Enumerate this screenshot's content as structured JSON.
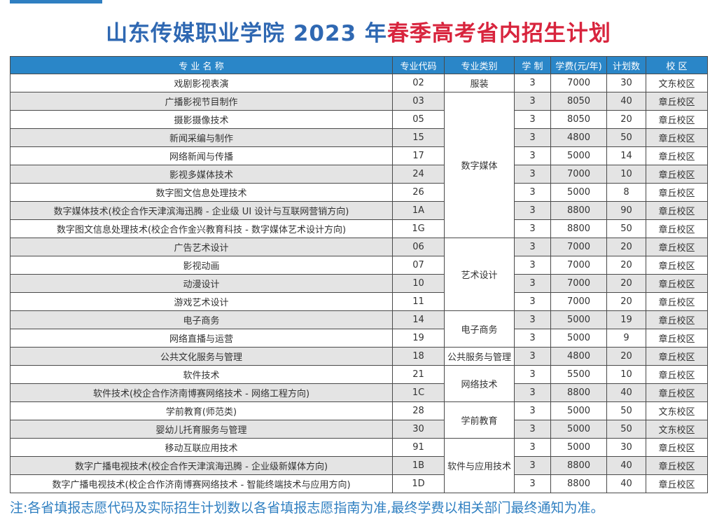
{
  "title": {
    "part1": "山东传媒职业学院 2023 年",
    "part2": "春季高考省内招生计划"
  },
  "colors": {
    "title_blue": "#2f68b2",
    "title_red": "#d8243d",
    "header_bg": "#2a86c8",
    "note": "#2f7fc1"
  },
  "table": {
    "headers": {
      "name": "专 业 名 称",
      "code": "专业代码",
      "category": "专业类别",
      "years": "学 制",
      "fee": "学费(元/年)",
      "plan": "计划数",
      "campus": "校 区"
    },
    "rows": [
      {
        "name": "戏剧影视表演",
        "code": "02",
        "years": "3",
        "fee": "7000",
        "plan": "30",
        "campus": "文东校区"
      },
      {
        "name": "广播影视节目制作",
        "code": "03",
        "years": "3",
        "fee": "8050",
        "plan": "40",
        "campus": "章丘校区"
      },
      {
        "name": "摄影摄像技术",
        "code": "05",
        "years": "3",
        "fee": "8050",
        "plan": "20",
        "campus": "章丘校区"
      },
      {
        "name": "新闻采编与制作",
        "code": "15",
        "years": "3",
        "fee": "4800",
        "plan": "50",
        "campus": "章丘校区"
      },
      {
        "name": "网络新闻与传播",
        "code": "17",
        "years": "3",
        "fee": "5000",
        "plan": "14",
        "campus": "章丘校区"
      },
      {
        "name": "影视多媒体技术",
        "code": "24",
        "years": "3",
        "fee": "7000",
        "plan": "10",
        "campus": "章丘校区"
      },
      {
        "name": "数字图文信息处理技术",
        "code": "26",
        "years": "3",
        "fee": "5000",
        "plan": "8",
        "campus": "章丘校区"
      },
      {
        "name": "数字媒体技术(校企合作天津滨海迅腾 - 企业级 UI 设计与互联网营销方向)",
        "code": "1A",
        "years": "3",
        "fee": "8800",
        "plan": "90",
        "campus": "章丘校区"
      },
      {
        "name": "数字图文信息处理技术(校企合作金兴教育科技 - 数字媒体艺术设计方向)",
        "code": "1G",
        "years": "3",
        "fee": "8800",
        "plan": "50",
        "campus": "章丘校区"
      },
      {
        "name": "广告艺术设计",
        "code": "06",
        "years": "3",
        "fee": "7000",
        "plan": "20",
        "campus": "章丘校区"
      },
      {
        "name": "影视动画",
        "code": "07",
        "years": "3",
        "fee": "7000",
        "plan": "20",
        "campus": "章丘校区"
      },
      {
        "name": "动漫设计",
        "code": "10",
        "years": "3",
        "fee": "7000",
        "plan": "20",
        "campus": "章丘校区"
      },
      {
        "name": "游戏艺术设计",
        "code": "11",
        "years": "3",
        "fee": "7000",
        "plan": "20",
        "campus": "章丘校区"
      },
      {
        "name": "电子商务",
        "code": "14",
        "years": "3",
        "fee": "5000",
        "plan": "19",
        "campus": "章丘校区"
      },
      {
        "name": "网络直播与运营",
        "code": "19",
        "years": "3",
        "fee": "5000",
        "plan": "9",
        "campus": "章丘校区"
      },
      {
        "name": "公共文化服务与管理",
        "code": "18",
        "years": "3",
        "fee": "4800",
        "plan": "20",
        "campus": "章丘校区"
      },
      {
        "name": "软件技术",
        "code": "21",
        "years": "3",
        "fee": "5500",
        "plan": "10",
        "campus": "章丘校区"
      },
      {
        "name": "软件技术(校企合作济南博赛网络技术 - 网络工程方向)",
        "code": "1C",
        "years": "3",
        "fee": "8800",
        "plan": "40",
        "campus": "章丘校区"
      },
      {
        "name": "学前教育(师范类)",
        "code": "28",
        "years": "3",
        "fee": "5000",
        "plan": "50",
        "campus": "文东校区"
      },
      {
        "name": "婴幼儿托育服务与管理",
        "code": "30",
        "years": "3",
        "fee": "5000",
        "plan": "50",
        "campus": "文东校区"
      },
      {
        "name": "移动互联应用技术",
        "code": "91",
        "years": "3",
        "fee": "5000",
        "plan": "30",
        "campus": "章丘校区"
      },
      {
        "name": "数字广播电视技术(校企合作天津滨海迅腾 - 企业级新媒体方向)",
        "code": "1B",
        "years": "3",
        "fee": "8800",
        "plan": "40",
        "campus": "章丘校区"
      },
      {
        "name": "数字广播电视技术(校企合作济南博赛网络技术 - 智能终端技术与应用方向)",
        "code": "1D",
        "years": "3",
        "fee": "8800",
        "plan": "40",
        "campus": "章丘校区"
      }
    ],
    "categories": [
      {
        "label": "服装",
        "start": 0,
        "span": 1
      },
      {
        "label": "数字媒体",
        "start": 1,
        "span": 8
      },
      {
        "label": "艺术设计",
        "start": 9,
        "span": 4
      },
      {
        "label": "电子商务",
        "start": 13,
        "span": 2
      },
      {
        "label": "公共服务与管理",
        "start": 15,
        "span": 1
      },
      {
        "label": "网络技术",
        "start": 16,
        "span": 2
      },
      {
        "label": "学前教育",
        "start": 18,
        "span": 2
      },
      {
        "label": "软件与应用技术",
        "start": 20,
        "span": 3
      }
    ]
  },
  "note": "注:各省填报志愿代码及实际招生计划数以各省填报志愿指南为准,最终学费以相关部门最终通知为准。"
}
